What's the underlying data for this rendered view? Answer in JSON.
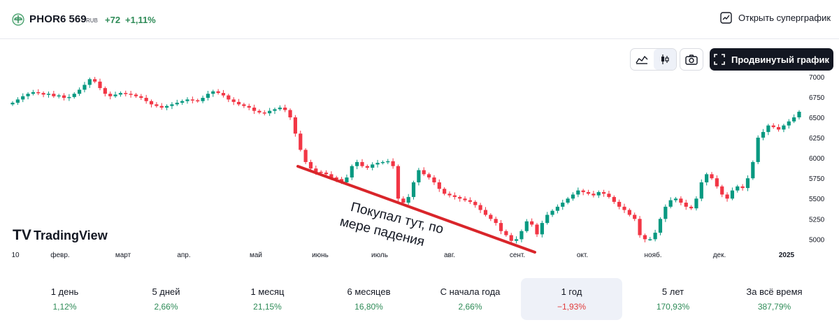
{
  "header": {
    "ticker": "PHOR",
    "price": "6 569",
    "currency": "RUB",
    "change": "+72",
    "change_pct": "+1,11%",
    "supergraph_label": "Открыть суперграфик",
    "advanced_label": "Продвинутый график"
  },
  "colors": {
    "up": "#089981",
    "down": "#f23645",
    "annotation": "#d9252a",
    "positive_text": "#2e8b57",
    "negative_text": "#e03a3a"
  },
  "icons": {
    "logo": "phosagro-logo-icon",
    "supergraph": "chart-line-box-icon",
    "area": "area-chart-icon",
    "candles": "candlestick-icon",
    "camera": "camera-icon",
    "fullscreen": "fullscreen-icon"
  },
  "watermark": "TradingView",
  "annotation": {
    "line1": "Покупал тут, по",
    "line2": "мере падения"
  },
  "chart_data": {
    "type": "candlestick",
    "title": "",
    "ylim": [
      4900,
      7050
    ],
    "y_ticks": [
      "7000",
      "6750",
      "6500",
      "6250",
      "6000",
      "5750",
      "5500",
      "5250",
      "5000"
    ],
    "x_tick_labels": [
      "10",
      "февр.",
      "март",
      "апр.",
      "май",
      "июнь",
      "июль",
      "авг.",
      "сент.",
      "окт.",
      "нояб.",
      "дек.",
      "2025"
    ],
    "closes": [
      6680,
      6720,
      6760,
      6790,
      6810,
      6800,
      6780,
      6790,
      6760,
      6770,
      6740,
      6750,
      6790,
      6840,
      6900,
      6970,
      6940,
      6860,
      6790,
      6760,
      6780,
      6800,
      6790,
      6780,
      6760,
      6740,
      6700,
      6660,
      6640,
      6620,
      6640,
      6660,
      6680,
      6700,
      6720,
      6710,
      6700,
      6740,
      6790,
      6820,
      6800,
      6770,
      6720,
      6690,
      6660,
      6640,
      6620,
      6580,
      6560,
      6550,
      6580,
      6600,
      6620,
      6590,
      6500,
      6300,
      6100,
      5950,
      5870,
      5830,
      5820,
      5800,
      5760,
      5740,
      5700,
      5760,
      5900,
      5950,
      5900,
      5880,
      5920,
      5940,
      5950,
      5960,
      5900,
      5500,
      5450,
      5520,
      5700,
      5850,
      5800,
      5760,
      5700,
      5620,
      5560,
      5540,
      5520,
      5500,
      5480,
      5460,
      5420,
      5360,
      5300,
      5250,
      5200,
      5100,
      5050,
      4980,
      5000,
      5100,
      5220,
      5180,
      5060,
      5200,
      5300,
      5350,
      5400,
      5450,
      5500,
      5550,
      5600,
      5580,
      5560,
      5540,
      5580,
      5560,
      5520,
      5460,
      5400,
      5360,
      5300,
      5250,
      5050,
      5000,
      5000,
      5080,
      5250,
      5400,
      5480,
      5500,
      5450,
      5400,
      5380,
      5500,
      5700,
      5800,
      5750,
      5650,
      5550,
      5500,
      5600,
      5650,
      5630,
      5750,
      5950,
      6250,
      6320,
      6400,
      6380,
      6350,
      6400,
      6450,
      6500,
      6569
    ]
  },
  "periods": [
    {
      "label": "1 день",
      "value": "1,12%",
      "sign": "pos"
    },
    {
      "label": "5 дней",
      "value": "2,66%",
      "sign": "pos"
    },
    {
      "label": "1 месяц",
      "value": "21,15%",
      "sign": "pos"
    },
    {
      "label": "6 месяцев",
      "value": "16,80%",
      "sign": "pos"
    },
    {
      "label": "С начала года",
      "value": "2,66%",
      "sign": "pos"
    },
    {
      "label": "1 год",
      "value": "−1,93%",
      "sign": "neg",
      "active": true
    },
    {
      "label": "5 лет",
      "value": "170,93%",
      "sign": "pos"
    },
    {
      "label": "За всё время",
      "value": "387,79%",
      "sign": "pos"
    }
  ]
}
